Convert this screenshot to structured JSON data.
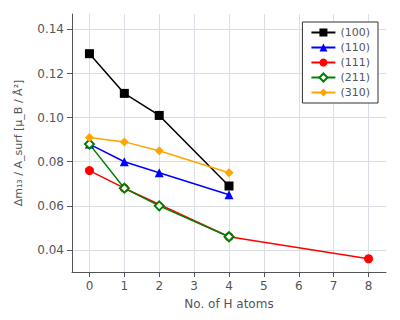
{
  "chart_data": {
    "type": "line",
    "xlabel": "No. of H atoms",
    "ylabel": "Δm₁₃ / A_surf [μ_B / Å²]",
    "series": [
      {
        "name": "(100)",
        "color": "black",
        "marker": "square",
        "x": [
          0,
          1,
          2,
          4
        ],
        "values": [
          0.129,
          0.111,
          0.101,
          0.069
        ]
      },
      {
        "name": "(110)",
        "color": "blue",
        "marker": "triangle",
        "x": [
          0,
          1,
          2,
          4
        ],
        "values": [
          0.088,
          0.08,
          0.075,
          0.065
        ]
      },
      {
        "name": "(111)",
        "color": "red",
        "marker": "circle",
        "x": [
          0,
          1,
          4,
          8
        ],
        "values": [
          0.076,
          0.068,
          0.046,
          0.036
        ]
      },
      {
        "name": "(211)",
        "color": "green",
        "marker": "open-diamond",
        "x": [
          0,
          1,
          2,
          4
        ],
        "values": [
          0.088,
          0.068,
          0.06,
          0.046
        ]
      },
      {
        "name": "(310)",
        "color": "orange",
        "marker": "diamond",
        "x": [
          0,
          1,
          2,
          4
        ],
        "values": [
          0.091,
          0.089,
          0.085,
          0.075
        ]
      }
    ],
    "xlim": [
      -0.5,
      8.5
    ],
    "xticks": [
      0,
      1,
      2,
      3,
      4,
      5,
      6,
      7,
      8
    ],
    "ylim": [
      0.03,
      0.147
    ],
    "yticks": [
      0.04,
      0.06,
      0.08,
      {
        "value": 0.1,
        "label": "0.10"
      },
      0.12,
      0.14
    ],
    "grid": true,
    "legend": "upper right"
  }
}
